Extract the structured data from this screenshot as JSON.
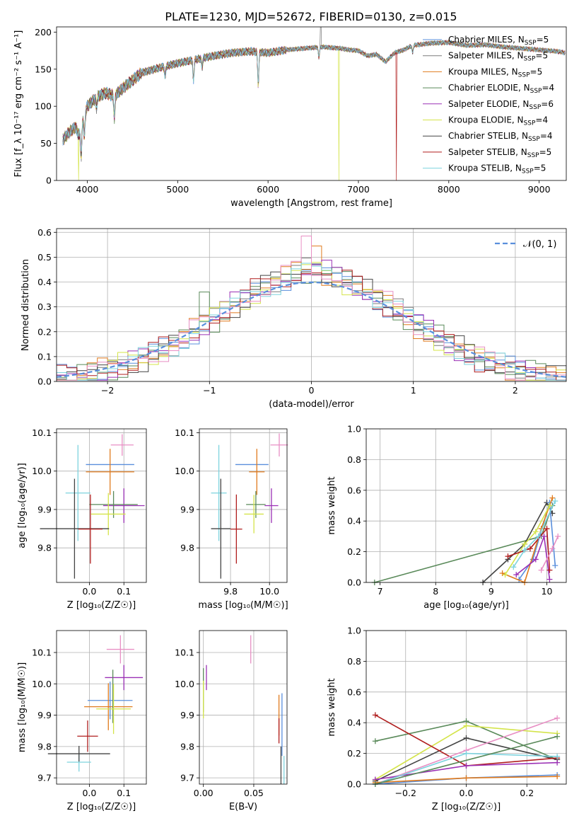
{
  "figure": {
    "title": "PLATE=1230, MJD=52672, FIBERID=0130, z=0.015"
  },
  "chart_data": [
    {
      "id": "spectrum",
      "type": "line",
      "xlabel": "wavelength [Angstrom, rest frame]",
      "ylabel": "Flux [f_λ 10⁻¹⁷ erg cm⁻² s⁻¹ A⁻¹]",
      "xlim": [
        3660,
        9300
      ],
      "ylim": [
        0,
        207
      ],
      "xticks": [
        4000,
        5000,
        6000,
        7000,
        8000,
        9000
      ],
      "yticks": [
        0,
        50,
        100,
        150,
        200
      ],
      "grid": false,
      "legend_position": "top-right",
      "continuum": {
        "x": [
          3730,
          3800,
          3870,
          3910,
          3950,
          4000,
          4100,
          4200,
          4300,
          4400,
          4500,
          4600,
          4800,
          5000,
          5200,
          5400,
          5600,
          5800,
          6000,
          6200,
          6400,
          6600,
          6800,
          6900,
          7000,
          7100,
          7200,
          7300,
          7400,
          7500,
          7600,
          7800,
          8000,
          8200,
          8400,
          8600,
          8800,
          9000,
          9200,
          9290
        ],
        "y": [
          55,
          65,
          72,
          60,
          82,
          100,
          112,
          118,
          114,
          125,
          135,
          145,
          152,
          158,
          163,
          168,
          172,
          174,
          172,
          176,
          178,
          180,
          178,
          176,
          175,
          168,
          170,
          160,
          172,
          176,
          182,
          185,
          186,
          182,
          183,
          180,
          178,
          176,
          174,
          172
        ]
      },
      "features": [
        {
          "x": 3933,
          "depth": 42
        },
        {
          "x": 3968,
          "depth": 30
        },
        {
          "x": 4102,
          "depth": 14
        },
        {
          "x": 4300,
          "depth": 30
        },
        {
          "x": 4861,
          "depth": 14
        },
        {
          "x": 5175,
          "depth": 28
        },
        {
          "x": 5270,
          "depth": 12
        },
        {
          "x": 5892,
          "depth": 45
        },
        {
          "x": 6563,
          "depth": 14
        },
        {
          "x": 7600,
          "depth": 10
        }
      ],
      "spike": {
        "x": 6583,
        "y": 212
      },
      "dropouts": [
        {
          "x": 3905,
          "series": 5
        },
        {
          "x": 6785,
          "series": 5
        },
        {
          "x": 7420,
          "series": 7
        }
      ],
      "series": [
        {
          "name": "Chabrier MILES, N_SSP=5",
          "color": "#5a8fdc"
        },
        {
          "name": "Salpeter MILES, N_SSP=5",
          "color": "#7b7b7b"
        },
        {
          "name": "Kroupa MILES, N_SSP=5",
          "color": "#e07b1e"
        },
        {
          "name": "Chabrier ELODIE, N_SSP=4",
          "color": "#5a8a5a"
        },
        {
          "name": "Salpeter ELODIE, N_SSP=6",
          "color": "#9b30b5"
        },
        {
          "name": "Kroupa ELODIE, N_SSP=4",
          "color": "#d4e44a"
        },
        {
          "name": "Chabrier STELIB, N_SSP=4",
          "color": "#444444"
        },
        {
          "name": "Salpeter STELIB, N_SSP=5",
          "color": "#b01e1e"
        },
        {
          "name": "Kroupa STELIB, N_SSP=5",
          "color": "#7ed3de"
        }
      ]
    },
    {
      "id": "residuals",
      "type": "line",
      "xlabel": "(data-model)/error",
      "ylabel": "Normed distribution",
      "xlim": [
        -2.5,
        2.5
      ],
      "ylim": [
        0,
        0.615
      ],
      "xticks": [
        -2,
        -1,
        0,
        1,
        2
      ],
      "xtick_labels": [
        "−2",
        "−1",
        "0",
        "1",
        "2"
      ],
      "yticks": [
        0.0,
        0.1,
        0.2,
        0.3,
        0.4,
        0.5,
        0.6
      ],
      "ytick_labels": [
        "0.0",
        "0.1",
        "0.2",
        "0.3",
        "0.4",
        "0.5",
        "0.6"
      ],
      "grid": true,
      "bin_width": 0.1,
      "reference": {
        "name": "𝒩(0, 1)",
        "color": "#5a8fdc",
        "style": "dashed",
        "mean": 0,
        "sigma": 1
      },
      "legend_position": "top-right",
      "spotlight_bins": [
        {
          "x": -0.05,
          "y": 0.585,
          "color": "#e88fc4"
        },
        {
          "x": 0.05,
          "y": 0.545,
          "color": "#e07b1e"
        },
        {
          "x": -1.0,
          "y": 0.36,
          "color": "#5a8a5a"
        },
        {
          "x": 0.6,
          "y": 0.36,
          "color": "#7ed3de"
        }
      ]
    },
    {
      "id": "z-age",
      "type": "scatter",
      "xlabel": "Z [log₁₀(Z/Z☉)]",
      "ylabel": "age  [log₁₀(age/yr)]",
      "xlim": [
        -0.095,
        0.165
      ],
      "ylim": [
        9.71,
        10.11
      ],
      "xticks": [
        0.0,
        0.1
      ],
      "xtick_labels": [
        "0.0",
        "0.1"
      ],
      "yticks": [
        9.8,
        9.9,
        10.0,
        10.1
      ],
      "ytick_labels": [
        "9.8",
        "9.9",
        "10.0",
        "10.1"
      ],
      "grid": true,
      "points": [
        {
          "x": 0.095,
          "y": 10.068,
          "xerr": 0.033,
          "yerr": 0.028,
          "color": "#e88fc4"
        },
        {
          "x": 0.06,
          "y": 10.017,
          "xerr": 0.07,
          "yerr": 0.0,
          "color": "#5a8fdc"
        },
        {
          "x": 0.06,
          "y": 9.998,
          "xerr": 0.07,
          "yerr": 0.06,
          "color": "#e07b1e"
        },
        {
          "x": 0.1,
          "y": 9.91,
          "xerr": 0.06,
          "yerr": 0.045,
          "color": "#9b30b5"
        },
        {
          "x": 0.07,
          "y": 9.913,
          "xerr": 0.07,
          "yerr": 0.035,
          "color": "#5a8a5a"
        },
        {
          "x": 0.055,
          "y": 9.888,
          "xerr": 0.05,
          "yerr": 0.055,
          "color": "#d4e44a"
        },
        {
          "x": -0.033,
          "y": 9.943,
          "xerr": 0.036,
          "yerr": 0.125,
          "color": "#7ed3de"
        },
        {
          "x": -0.043,
          "y": 9.85,
          "xerr": 0.1,
          "yerr": 0.13,
          "color": "#444444"
        },
        {
          "x": 0.003,
          "y": 9.849,
          "xerr": 0.035,
          "yerr": 0.09,
          "color": "#b01e1e"
        }
      ]
    },
    {
      "id": "mass-age",
      "type": "scatter",
      "xlabel": "mass [log₁₀(M/M☉)]",
      "ylabel": "",
      "xlim": [
        9.64,
        10.09
      ],
      "ylim": [
        9.71,
        10.11
      ],
      "xticks": [
        9.8,
        10.0
      ],
      "xtick_labels": [
        "9.8",
        "10.0"
      ],
      "yticks": [
        9.8,
        9.9,
        10.0,
        10.1
      ],
      "ytick_labels": [
        "9.8",
        "9.9",
        "10.0",
        "10.1"
      ],
      "grid": true,
      "points": [
        {
          "x": 10.05,
          "y": 10.068,
          "xerr": 0.045,
          "yerr": 0.03,
          "color": "#e88fc4"
        },
        {
          "x": 9.91,
          "y": 10.017,
          "xerr": 0.085,
          "yerr": 0.0,
          "color": "#5a8fdc"
        },
        {
          "x": 9.935,
          "y": 9.998,
          "xerr": 0.04,
          "yerr": 0.06,
          "color": "#e07b1e"
        },
        {
          "x": 10.01,
          "y": 9.91,
          "xerr": 0.035,
          "yerr": 0.045,
          "color": "#9b30b5"
        },
        {
          "x": 9.93,
          "y": 9.913,
          "xerr": 0.05,
          "yerr": 0.035,
          "color": "#5a8a5a"
        },
        {
          "x": 9.92,
          "y": 9.888,
          "xerr": 0.05,
          "yerr": 0.05,
          "color": "#d4e44a"
        },
        {
          "x": 9.74,
          "y": 9.943,
          "xerr": 0.04,
          "yerr": 0.125,
          "color": "#7ed3de"
        },
        {
          "x": 9.75,
          "y": 9.85,
          "xerr": 0.05,
          "yerr": 0.13,
          "color": "#444444"
        },
        {
          "x": 9.83,
          "y": 9.849,
          "xerr": 0.03,
          "yerr": 0.09,
          "color": "#b01e1e"
        }
      ]
    },
    {
      "id": "age-massweight",
      "type": "line",
      "xlabel": "age  [log₁₀(age/yr)]",
      "ylabel": "mass weight",
      "xlim": [
        6.75,
        10.35
      ],
      "ylim": [
        0,
        1.0
      ],
      "xticks": [
        7,
        8,
        9,
        10
      ],
      "xtick_labels": [
        "7",
        "8",
        "9",
        "10"
      ],
      "yticks": [
        0.0,
        0.2,
        0.4,
        0.6,
        0.8,
        1.0
      ],
      "ytick_labels": [
        "0.0",
        "0.2",
        "0.4",
        "0.6",
        "0.8",
        "1.0"
      ],
      "grid": true,
      "series": [
        {
          "color": "#5a8a5a",
          "x": [
            6.9,
            9.9,
            10.1
          ],
          "y": [
            0.0,
            0.3,
            0.5
          ]
        },
        {
          "color": "#444444",
          "x": [
            8.85,
            9.3,
            9.6,
            10.0,
            10.1
          ],
          "y": [
            0.0,
            0.15,
            0.25,
            0.52,
            0.45
          ]
        },
        {
          "color": "#5a8fdc",
          "x": [
            9.5,
            9.75,
            10.05,
            10.15
          ],
          "y": [
            0.02,
            0.15,
            0.52,
            0.11
          ]
        },
        {
          "color": "#e07b1e",
          "x": [
            9.2,
            9.6,
            9.9,
            10.1
          ],
          "y": [
            0.06,
            0.0,
            0.35,
            0.55
          ]
        },
        {
          "color": "#9b30b5",
          "x": [
            9.45,
            9.8,
            9.95,
            10.05
          ],
          "y": [
            0.05,
            0.15,
            0.3,
            0.02
          ]
        },
        {
          "color": "#d4e44a",
          "x": [
            9.25,
            9.6,
            9.8,
            10.05
          ],
          "y": [
            0.05,
            0.25,
            0.33,
            0.5
          ]
        },
        {
          "color": "#b01e1e",
          "x": [
            9.3,
            9.7,
            10.0,
            10.05
          ],
          "y": [
            0.17,
            0.22,
            0.35,
            0.08
          ]
        },
        {
          "color": "#7ed3de",
          "x": [
            9.4,
            9.6,
            9.85,
            10.15
          ],
          "y": [
            0.1,
            0.21,
            0.3,
            0.53
          ]
        },
        {
          "color": "#e88fc4",
          "x": [
            9.9,
            10.1,
            10.2
          ],
          "y": [
            0.08,
            0.22,
            0.3
          ]
        }
      ]
    },
    {
      "id": "z-mass",
      "type": "scatter",
      "xlabel": "Z [log₁₀(Z/Z☉)]",
      "ylabel": "mass [log₁₀(M/M☉)]",
      "xlim": [
        -0.095,
        0.165
      ],
      "ylim": [
        9.68,
        10.17
      ],
      "xticks": [
        0.0,
        0.1
      ],
      "xtick_labels": [
        "0.0",
        "0.1"
      ],
      "yticks": [
        9.7,
        9.8,
        9.9,
        10.0,
        10.1
      ],
      "ytick_labels": [
        "9.7",
        "9.8",
        "9.9",
        "10.0",
        "10.1"
      ],
      "grid": true,
      "points": [
        {
          "x": 0.09,
          "y": 10.11,
          "xerr": 0.04,
          "yerr": 0.045,
          "color": "#e88fc4"
        },
        {
          "x": 0.06,
          "y": 9.947,
          "xerr": 0.065,
          "yerr": 0.06,
          "color": "#5a8fdc"
        },
        {
          "x": 0.055,
          "y": 9.927,
          "xerr": 0.07,
          "yerr": 0.075,
          "color": "#e07b1e"
        },
        {
          "x": 0.1,
          "y": 10.02,
          "xerr": 0.055,
          "yerr": 0.04,
          "color": "#9b30b5"
        },
        {
          "x": 0.068,
          "y": 9.96,
          "xerr": 0.0,
          "yerr": 0.085,
          "color": "#5a8a5a"
        },
        {
          "x": 0.07,
          "y": 9.92,
          "xerr": 0.05,
          "yerr": 0.08,
          "color": "#d4e44a"
        },
        {
          "x": -0.03,
          "y": 9.75,
          "xerr": 0.035,
          "yerr": 0.03,
          "color": "#7ed3de"
        },
        {
          "x": -0.03,
          "y": 9.777,
          "xerr": 0.09,
          "yerr": 0.025,
          "color": "#444444"
        },
        {
          "x": -0.005,
          "y": 9.833,
          "xerr": 0.03,
          "yerr": 0.05,
          "color": "#b01e1e"
        }
      ]
    },
    {
      "id": "ebv-mass",
      "type": "scatter",
      "xlabel": "E(B-V)",
      "ylabel": "",
      "xlim": [
        -0.004,
        0.083
      ],
      "ylim": [
        9.68,
        10.17
      ],
      "xticks": [
        0.0,
        0.05
      ],
      "xtick_labels": [
        "0.00",
        "0.05"
      ],
      "yticks": [
        9.7,
        9.8,
        9.9,
        10.0,
        10.1
      ],
      "ytick_labels": [
        "9.7",
        "9.8",
        "9.9",
        "10.0",
        "10.1"
      ],
      "grid": true,
      "points": [
        {
          "x": 0.047,
          "y": 10.11,
          "xerr": 0.0,
          "yerr": 0.045,
          "color": "#e88fc4"
        },
        {
          "x": 0.078,
          "y": 9.87,
          "xerr": 0.0,
          "yerr": 0.1,
          "color": "#5a8fdc"
        },
        {
          "x": 0.075,
          "y": 9.9,
          "xerr": 0.0,
          "yerr": 0.065,
          "color": "#e07b1e"
        },
        {
          "x": 0.003,
          "y": 10.02,
          "xerr": 0.0,
          "yerr": 0.04,
          "color": "#9b30b5"
        },
        {
          "x": 0.0,
          "y": 9.98,
          "xerr": 0.0,
          "yerr": 0.07,
          "color": "#5a8a5a"
        },
        {
          "x": 0.0,
          "y": 9.95,
          "xerr": 0.0,
          "yerr": 0.06,
          "color": "#d4e44a"
        },
        {
          "x": 0.08,
          "y": 9.725,
          "xerr": 0.0,
          "yerr": 0.045,
          "color": "#7ed3de"
        },
        {
          "x": 0.077,
          "y": 9.74,
          "xerr": 0.0,
          "yerr": 0.06,
          "color": "#444444"
        },
        {
          "x": 0.075,
          "y": 9.85,
          "xerr": 0.0,
          "yerr": 0.04,
          "color": "#b01e1e"
        }
      ]
    },
    {
      "id": "z-massweight",
      "type": "line",
      "xlabel": "Z [log₁₀(Z/Z☉)]",
      "ylabel": "mass weight",
      "xlim": [
        -0.33,
        0.33
      ],
      "ylim": [
        0,
        1.0
      ],
      "xticks": [
        -0.2,
        0.0,
        0.2
      ],
      "xtick_labels": [
        "−0.2",
        "0.0",
        "0.2"
      ],
      "yticks": [
        0.0,
        0.2,
        0.4,
        0.6,
        0.8,
        1.0
      ],
      "ytick_labels": [
        "0.0",
        "0.2",
        "0.4",
        "0.6",
        "0.8",
        "1.0"
      ],
      "grid": true,
      "series": [
        {
          "color": "#5a8a5a",
          "x": [
            -0.3,
            0.0,
            0.3
          ],
          "y": [
            0.28,
            0.41,
            0.16
          ]
        },
        {
          "color": "#d4e44a",
          "x": [
            -0.3,
            0.0,
            0.3
          ],
          "y": [
            0.03,
            0.38,
            0.33
          ]
        },
        {
          "color": "#444444",
          "x": [
            -0.3,
            0.0,
            0.3
          ],
          "y": [
            0.02,
            0.3,
            0.16
          ]
        },
        {
          "color": "#b01e1e",
          "x": [
            -0.3,
            0.0,
            0.3
          ],
          "y": [
            0.45,
            0.12,
            0.17
          ]
        },
        {
          "color": "#e88fc4",
          "x": [
            -0.3,
            0.0,
            0.3
          ],
          "y": [
            0.0,
            0.22,
            0.43
          ]
        },
        {
          "color": "#9b30b5",
          "x": [
            -0.3,
            0.0,
            0.3
          ],
          "y": [
            0.03,
            0.12,
            0.14
          ]
        },
        {
          "color": "#7ed3de",
          "x": [
            -0.3,
            0.0,
            0.3
          ],
          "y": [
            0.0,
            0.2,
            0.18
          ]
        },
        {
          "color": "#5a8fdc",
          "x": [
            -0.3,
            0.0,
            0.3
          ],
          "y": [
            0.0,
            0.04,
            0.06
          ]
        },
        {
          "color": "#e07b1e",
          "x": [
            -0.3,
            0.0,
            0.3
          ],
          "y": [
            0.01,
            0.04,
            0.05
          ]
        },
        {
          "color": "#5a8a5a",
          "x": [
            -0.3,
            0.3
          ],
          "y": [
            0.0,
            0.31
          ]
        }
      ]
    }
  ]
}
